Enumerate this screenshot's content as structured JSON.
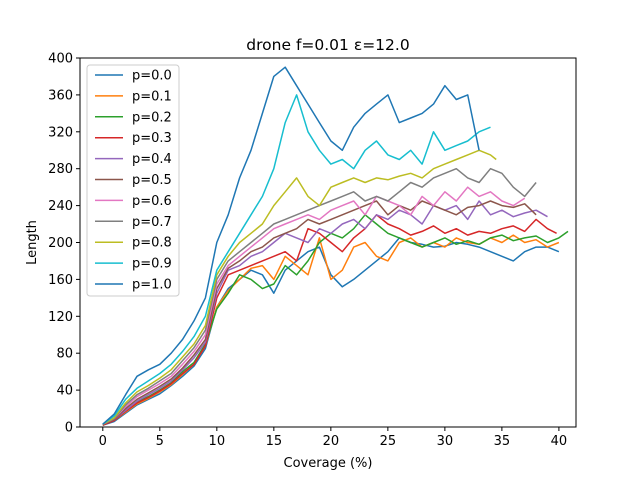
{
  "chart_data": {
    "type": "line",
    "title": "drone f=0.01 ε=12.0",
    "xlabel": "Coverage (%)",
    "ylabel": "Length",
    "xlim": [
      -2,
      41.5
    ],
    "ylim": [
      0,
      400
    ],
    "xticks": [
      0,
      5,
      10,
      15,
      20,
      25,
      30,
      35,
      40
    ],
    "yticks": [
      0,
      40,
      80,
      120,
      160,
      200,
      240,
      280,
      320,
      360,
      400
    ],
    "grid": false,
    "legend_position": "upper left",
    "series": [
      {
        "name": "p=0.0",
        "color": "#1f77b4",
        "x": [
          0.0,
          1.0,
          2.0,
          3.0,
          4.0,
          5.0,
          6.0,
          7.0,
          8.0,
          9.0,
          10.0,
          11.0,
          12.0,
          13.0,
          14.0,
          15.0,
          16.0,
          17.0,
          18.0,
          19.0,
          20.0,
          21.0,
          22.0,
          23.0,
          24.0,
          25.0,
          26.0,
          27.0,
          28.0,
          29.0,
          30.0,
          31.0,
          32.0,
          33.0,
          34.0,
          35.0,
          36.0,
          37.0,
          38.0,
          39.0,
          40.0
        ],
        "y": [
          2,
          6,
          15,
          24,
          30,
          36,
          45,
          55,
          66,
          85,
          130,
          150,
          160,
          170,
          165,
          145,
          170,
          180,
          190,
          195,
          165,
          152,
          160,
          170,
          180,
          190,
          205,
          200,
          198,
          195,
          196,
          200,
          198,
          195,
          190,
          185,
          180,
          190,
          195,
          195,
          190
        ]
      },
      {
        "name": "p=0.1",
        "color": "#ff7f0e",
        "x": [
          0.0,
          1.0,
          2.0,
          3.0,
          4.0,
          5.0,
          6.0,
          7.0,
          8.0,
          9.0,
          10.0,
          11.0,
          12.0,
          13.0,
          14.0,
          15.0,
          16.0,
          17.0,
          18.0,
          19.0,
          20.0,
          21.0,
          22.0,
          23.0,
          24.0,
          25.0,
          26.0,
          27.0,
          28.0,
          29.0,
          30.0,
          31.0,
          32.0,
          33.0,
          34.0,
          35.0,
          36.0,
          37.0,
          38.0,
          39.0,
          40.0
        ],
        "y": [
          3,
          7,
          16,
          25,
          31,
          38,
          46,
          57,
          68,
          88,
          130,
          148,
          160,
          172,
          175,
          160,
          185,
          175,
          165,
          205,
          160,
          170,
          195,
          200,
          185,
          180,
          200,
          205,
          195,
          200,
          195,
          205,
          200,
          198,
          205,
          200,
          208,
          200,
          203,
          195,
          200
        ]
      },
      {
        "name": "p=0.2",
        "color": "#2ca02c",
        "x": [
          0.0,
          1.0,
          2.0,
          3.0,
          4.0,
          5.0,
          6.0,
          7.0,
          8.0,
          9.0,
          10.0,
          11.0,
          12.0,
          13.0,
          14.0,
          15.0,
          16.0,
          17.0,
          18.0,
          19.0,
          20.0,
          21.0,
          22.0,
          23.0,
          24.0,
          25.0,
          26.0,
          27.0,
          28.0,
          29.0,
          30.0,
          31.0,
          32.0,
          33.0,
          34.0,
          35.0,
          36.0,
          37.0,
          38.0,
          39.0,
          40.0,
          40.8
        ],
        "y": [
          2,
          8,
          18,
          27,
          33,
          40,
          48,
          60,
          70,
          90,
          128,
          145,
          165,
          160,
          150,
          155,
          175,
          165,
          180,
          200,
          210,
          205,
          215,
          230,
          220,
          210,
          205,
          200,
          195,
          200,
          205,
          198,
          202,
          198,
          205,
          208,
          202,
          205,
          207,
          200,
          205,
          212
        ]
      },
      {
        "name": "p=0.3",
        "color": "#d62728",
        "x": [
          0.0,
          1.0,
          2.0,
          3.0,
          4.0,
          5.0,
          6.0,
          7.0,
          8.0,
          9.0,
          10.0,
          11.0,
          12.0,
          13.0,
          14.0,
          15.0,
          16.0,
          17.0,
          18.0,
          19.0,
          20.0,
          21.0,
          22.0,
          23.0,
          24.0,
          25.0,
          26.0,
          27.0,
          28.0,
          29.0,
          30.0,
          31.0,
          32.0,
          33.0,
          34.0,
          35.0,
          36.0,
          37.0,
          38.0,
          39.0,
          39.8
        ],
        "y": [
          2,
          7,
          17,
          26,
          32,
          39,
          47,
          58,
          68,
          88,
          140,
          165,
          170,
          175,
          180,
          185,
          190,
          180,
          215,
          210,
          200,
          190,
          205,
          215,
          230,
          220,
          215,
          208,
          212,
          218,
          210,
          215,
          208,
          212,
          210,
          215,
          218,
          212,
          225,
          215,
          210
        ]
      },
      {
        "name": "p=0.4",
        "color": "#9467bd",
        "x": [
          0.0,
          1.0,
          2.0,
          3.0,
          4.0,
          5.0,
          6.0,
          7.0,
          8.0,
          9.0,
          10.0,
          11.0,
          12.0,
          13.0,
          14.0,
          15.0,
          16.0,
          17.0,
          18.0,
          19.0,
          20.0,
          21.0,
          22.0,
          23.0,
          24.0,
          25.0,
          26.0,
          27.0,
          28.0,
          29.0,
          30.0,
          31.0,
          32.0,
          33.0,
          34.0,
          35.0,
          36.0,
          37.0,
          38.0,
          39.0
        ],
        "y": [
          3,
          8,
          18,
          28,
          35,
          42,
          50,
          62,
          75,
          92,
          145,
          170,
          175,
          185,
          190,
          200,
          210,
          205,
          200,
          215,
          210,
          220,
          225,
          215,
          230,
          225,
          235,
          230,
          220,
          240,
          235,
          240,
          225,
          245,
          230,
          235,
          228,
          232,
          235,
          228
        ]
      },
      {
        "name": "p=0.5",
        "color": "#8c564b",
        "x": [
          0.0,
          1.0,
          2.0,
          3.0,
          4.0,
          5.0,
          6.0,
          7.0,
          8.0,
          9.0,
          10.0,
          11.0,
          12.0,
          13.0,
          14.0,
          15.0,
          16.0,
          17.0,
          18.0,
          19.0,
          20.0,
          21.0,
          22.0,
          23.0,
          24.0,
          25.0,
          26.0,
          27.0,
          28.0,
          29.0,
          30.0,
          31.0,
          32.0,
          33.0,
          34.0,
          35.0,
          36.0,
          37.0,
          38.0
        ],
        "y": [
          3,
          8,
          20,
          30,
          37,
          44,
          52,
          64,
          78,
          95,
          150,
          172,
          180,
          190,
          195,
          205,
          210,
          215,
          225,
          220,
          225,
          230,
          235,
          240,
          245,
          230,
          240,
          235,
          245,
          240,
          235,
          230,
          238,
          240,
          245,
          240,
          238,
          242,
          230
        ]
      },
      {
        "name": "p=0.6",
        "color": "#e377c2",
        "x": [
          0.0,
          1.0,
          2.0,
          3.0,
          4.0,
          5.0,
          6.0,
          7.0,
          8.0,
          9.0,
          10.0,
          11.0,
          12.0,
          13.0,
          14.0,
          15.0,
          16.0,
          17.0,
          18.0,
          19.0,
          20.0,
          21.0,
          22.0,
          23.0,
          24.0,
          25.0,
          26.0,
          27.0,
          28.0,
          29.0,
          30.0,
          31.0,
          32.0,
          33.0,
          34.0,
          35.0,
          36.0,
          37.0
        ],
        "y": [
          3,
          9,
          22,
          33,
          40,
          47,
          55,
          68,
          82,
          100,
          155,
          175,
          185,
          195,
          205,
          215,
          220,
          225,
          230,
          225,
          235,
          240,
          245,
          230,
          250,
          245,
          240,
          230,
          250,
          240,
          255,
          245,
          260,
          250,
          255,
          245,
          240,
          248
        ]
      },
      {
        "name": "p=0.7",
        "color": "#7f7f7f",
        "x": [
          0.0,
          1.0,
          2.0,
          3.0,
          4.0,
          5.0,
          6.0,
          7.0,
          8.0,
          9.0,
          10.0,
          11.0,
          12.0,
          13.0,
          14.0,
          15.0,
          16.0,
          17.0,
          18.0,
          19.0,
          20.0,
          21.0,
          22.0,
          23.0,
          24.0,
          25.0,
          26.0,
          27.0,
          28.0,
          29.0,
          30.0,
          31.0,
          32.0,
          33.0,
          34.0,
          35.0,
          36.0,
          37.0,
          38.0
        ],
        "y": [
          3,
          9,
          24,
          35,
          42,
          50,
          58,
          72,
          86,
          105,
          160,
          180,
          190,
          200,
          210,
          220,
          225,
          230,
          235,
          240,
          245,
          250,
          255,
          245,
          250,
          245,
          255,
          265,
          260,
          270,
          275,
          280,
          270,
          265,
          280,
          275,
          260,
          250,
          265
        ]
      },
      {
        "name": "p=0.8",
        "color": "#bcbd22",
        "x": [
          0.0,
          1.0,
          2.0,
          3.0,
          4.0,
          5.0,
          6.0,
          7.0,
          8.0,
          9.0,
          10.0,
          11.0,
          12.0,
          13.0,
          14.0,
          15.0,
          16.0,
          17.0,
          18.0,
          19.0,
          20.0,
          21.0,
          22.0,
          23.0,
          24.0,
          25.0,
          26.0,
          27.0,
          28.0,
          29.0,
          30.0,
          31.0,
          32.0,
          33.0,
          34.0,
          34.5
        ],
        "y": [
          3,
          10,
          26,
          38,
          45,
          53,
          62,
          76,
          90,
          110,
          165,
          185,
          200,
          210,
          220,
          240,
          255,
          270,
          250,
          240,
          260,
          265,
          270,
          265,
          270,
          268,
          272,
          275,
          270,
          280,
          285,
          290,
          295,
          300,
          295,
          290
        ]
      },
      {
        "name": "p=0.9",
        "color": "#17becf",
        "x": [
          0.0,
          1.0,
          2.0,
          3.0,
          4.0,
          5.0,
          6.0,
          7.0,
          8.0,
          9.0,
          10.0,
          11.0,
          12.0,
          13.0,
          14.0,
          15.0,
          16.0,
          17.0,
          18.0,
          19.0,
          20.0,
          21.0,
          22.0,
          23.0,
          24.0,
          25.0,
          26.0,
          27.0,
          28.0,
          29.0,
          30.0,
          31.0,
          32.0,
          33.0,
          34.0
        ],
        "y": [
          3,
          12,
          30,
          42,
          50,
          58,
          68,
          82,
          98,
          120,
          170,
          190,
          210,
          230,
          250,
          280,
          330,
          360,
          320,
          300,
          285,
          290,
          280,
          300,
          310,
          295,
          290,
          300,
          285,
          320,
          300,
          305,
          310,
          320,
          325
        ]
      },
      {
        "name": "p=1.0",
        "color": "#1f77b4",
        "x": [
          0.0,
          1.0,
          2.0,
          3.0,
          4.0,
          5.0,
          6.0,
          7.0,
          8.0,
          9.0,
          10.0,
          11.0,
          12.0,
          13.0,
          14.0,
          15.0,
          16.0,
          17.0,
          18.0,
          19.0,
          20.0,
          21.0,
          22.0,
          23.0,
          24.0,
          25.0,
          26.0,
          27.0,
          28.0,
          29.0,
          30.0,
          31.0,
          32.0,
          33.0
        ],
        "y": [
          3,
          14,
          35,
          55,
          62,
          68,
          80,
          95,
          115,
          140,
          200,
          230,
          270,
          300,
          340,
          380,
          390,
          370,
          350,
          330,
          310,
          300,
          325,
          340,
          350,
          360,
          330,
          335,
          340,
          350,
          370,
          355,
          360,
          300
        ]
      }
    ]
  }
}
